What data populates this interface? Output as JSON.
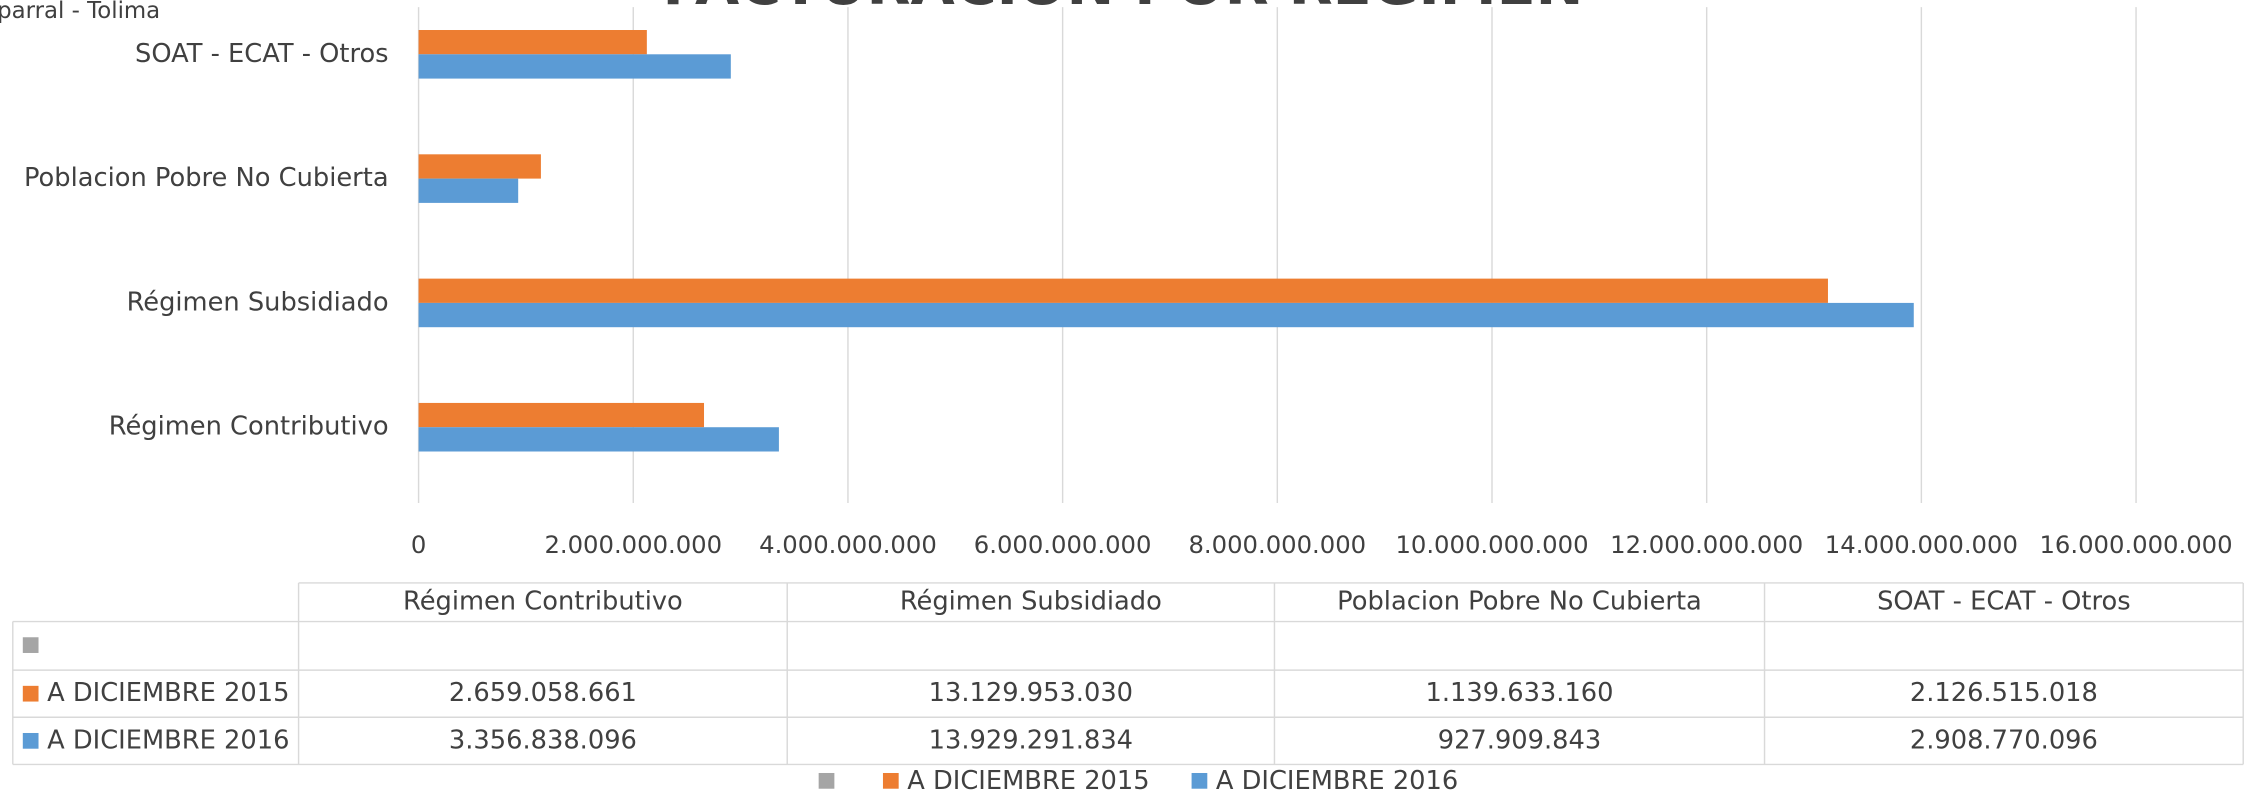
{
  "chart_data": {
    "type": "bar",
    "orientation": "horizontal",
    "title": "FACTURACION POR REGIMEN",
    "subtitle": "parral - Tolima",
    "categories": [
      "Régimen Contributivo",
      "Régimen Subsidiado",
      "Poblacion Pobre No Cubierta",
      "SOAT - ECAT - Otros"
    ],
    "series": [
      {
        "name": "A DICIEMBRE 2015",
        "color": "#ed7d31",
        "values": [
          2659058661,
          13129953030,
          1139633160,
          2126515018
        ],
        "value_labels": [
          "2.659.058.661",
          "13.129.953.030",
          "1.139.633.160",
          "2.126.515.018"
        ]
      },
      {
        "name": "A DICIEMBRE 2016",
        "color": "#5b9bd5",
        "values": [
          3356838096,
          13929291834,
          927909843,
          2908770096
        ],
        "value_labels": [
          "3.356.838.096",
          "13.929.291.834",
          "927.909.843",
          "2.908.770.096"
        ]
      }
    ],
    "xlim": [
      0,
      16000000000
    ],
    "xticks": [
      0,
      {
        "value": 2000000000,
        "label": "2.000.000.000"
      },
      {
        "value": 4000000000,
        "label": "4.000.000.000"
      },
      {
        "value": 6000000000,
        "label": "6.000.000.000"
      },
      {
        "value": 8000000000,
        "label": "8.000.000.000"
      },
      {
        "value": 10000000000,
        "label": "10.000.000.000"
      },
      {
        "value": 12000000000,
        "label": "12.000.000.000"
      },
      {
        "value": 14000000000,
        "label": "14.000.000.000"
      },
      {
        "value": 16000000000,
        "label": "16.000.000.000"
      }
    ],
    "grid": true
  }
}
